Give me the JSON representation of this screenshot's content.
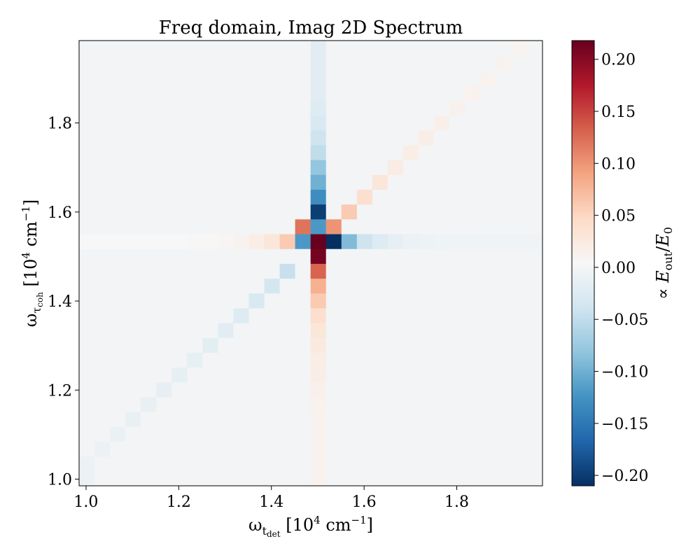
{
  "chart_data": {
    "type": "heatmap",
    "title": "Freq domain, Imag 2D Spectrum",
    "xlabel": "ω_t_det [10^4 cm^−1]",
    "ylabel": "ω_τ_coh [10^4 cm^−1]",
    "colorbar_label": "∝ E_out/E_0",
    "colormap": "RdBu_r",
    "xlim": [
      0.985,
      1.985
    ],
    "ylim": [
      0.985,
      1.985
    ],
    "clim": [
      -0.21,
      0.218
    ],
    "grid_start": 0.985,
    "grid_step": 0.0333,
    "grid_count": 30,
    "x_ticks": [
      1.0,
      1.2,
      1.4,
      1.6,
      1.8
    ],
    "x_tick_labels": [
      "1.0",
      "1.2",
      "1.4",
      "1.6",
      "1.8"
    ],
    "y_ticks": [
      1.0,
      1.2,
      1.4,
      1.6,
      1.8
    ],
    "y_tick_labels": [
      "1.0",
      "1.2",
      "1.4",
      "1.6",
      "1.8"
    ],
    "colorbar_ticks": [
      0.2,
      0.15,
      0.1,
      0.05,
      0.0,
      -0.05,
      -0.1,
      -0.15,
      -0.2
    ],
    "colorbar_tick_labels": [
      "0.20",
      "0.15",
      "0.10",
      "0.05",
      "0.00",
      "−0.05",
      "−0.10",
      "−0.15",
      "−0.20"
    ],
    "background_value": -0.002,
    "nonzero_cells": [
      {
        "ix": 15,
        "iy": 18,
        "v": -0.2
      },
      {
        "ix": 16,
        "iy": 17,
        "v": 0.1
      },
      {
        "ix": 15,
        "iy": 16,
        "v": 0.22
      },
      {
        "ix": 14,
        "iy": 16,
        "v": -0.12
      },
      {
        "ix": 16,
        "iy": 16,
        "v": -0.21
      },
      {
        "ix": 15,
        "iy": 17,
        "v": -0.12
      },
      {
        "ix": 17,
        "iy": 16,
        "v": -0.09
      },
      {
        "ix": 15,
        "iy": 15,
        "v": 0.21
      },
      {
        "ix": 14,
        "iy": 17,
        "v": 0.12
      },
      {
        "ix": 15,
        "iy": 14,
        "v": 0.13
      },
      {
        "ix": 15,
        "iy": 13,
        "v": 0.08
      },
      {
        "ix": 15,
        "iy": 12,
        "v": 0.06
      },
      {
        "ix": 15,
        "iy": 11,
        "v": 0.04
      },
      {
        "ix": 15,
        "iy": 10,
        "v": 0.03
      },
      {
        "ix": 15,
        "iy": 9,
        "v": 0.025
      },
      {
        "ix": 15,
        "iy": 8,
        "v": 0.02
      },
      {
        "ix": 15,
        "iy": 7,
        "v": 0.018
      },
      {
        "ix": 15,
        "iy": 6,
        "v": 0.015
      },
      {
        "ix": 15,
        "iy": 5,
        "v": 0.013
      },
      {
        "ix": 15,
        "iy": 4,
        "v": 0.012
      },
      {
        "ix": 15,
        "iy": 3,
        "v": 0.012
      },
      {
        "ix": 15,
        "iy": 2,
        "v": 0.012
      },
      {
        "ix": 15,
        "iy": 1,
        "v": 0.012
      },
      {
        "ix": 15,
        "iy": 0,
        "v": 0.012
      },
      {
        "ix": 15,
        "iy": 19,
        "v": -0.13
      },
      {
        "ix": 15,
        "iy": 20,
        "v": -0.1
      },
      {
        "ix": 15,
        "iy": 21,
        "v": -0.08
      },
      {
        "ix": 15,
        "iy": 22,
        "v": -0.05
      },
      {
        "ix": 15,
        "iy": 23,
        "v": -0.04
      },
      {
        "ix": 15,
        "iy": 24,
        "v": -0.03
      },
      {
        "ix": 15,
        "iy": 25,
        "v": -0.025
      },
      {
        "ix": 15,
        "iy": 26,
        "v": -0.02
      },
      {
        "ix": 15,
        "iy": 27,
        "v": -0.02
      },
      {
        "ix": 15,
        "iy": 28,
        "v": -0.02
      },
      {
        "ix": 15,
        "iy": 29,
        "v": -0.02
      },
      {
        "ix": 13,
        "iy": 16,
        "v": 0.06
      },
      {
        "ix": 12,
        "iy": 16,
        "v": 0.03
      },
      {
        "ix": 11,
        "iy": 16,
        "v": 0.02
      },
      {
        "ix": 10,
        "iy": 16,
        "v": 0.012
      },
      {
        "ix": 9,
        "iy": 16,
        "v": 0.008
      },
      {
        "ix": 8,
        "iy": 16,
        "v": 0.006
      },
      {
        "ix": 7,
        "iy": 16,
        "v": 0.005
      },
      {
        "ix": 6,
        "iy": 16,
        "v": 0.004
      },
      {
        "ix": 5,
        "iy": 16,
        "v": 0.004
      },
      {
        "ix": 4,
        "iy": 16,
        "v": 0.004
      },
      {
        "ix": 3,
        "iy": 16,
        "v": 0.004
      },
      {
        "ix": 2,
        "iy": 16,
        "v": 0.004
      },
      {
        "ix": 1,
        "iy": 16,
        "v": 0.004
      },
      {
        "ix": 0,
        "iy": 16,
        "v": 0.004
      },
      {
        "ix": 18,
        "iy": 16,
        "v": -0.04
      },
      {
        "ix": 19,
        "iy": 16,
        "v": -0.025
      },
      {
        "ix": 20,
        "iy": 16,
        "v": -0.015
      },
      {
        "ix": 21,
        "iy": 16,
        "v": -0.01
      },
      {
        "ix": 22,
        "iy": 16,
        "v": -0.008
      },
      {
        "ix": 23,
        "iy": 16,
        "v": -0.006
      },
      {
        "ix": 24,
        "iy": 16,
        "v": -0.005
      },
      {
        "ix": 25,
        "iy": 16,
        "v": -0.005
      },
      {
        "ix": 26,
        "iy": 16,
        "v": -0.005
      },
      {
        "ix": 27,
        "iy": 16,
        "v": -0.005
      },
      {
        "ix": 28,
        "iy": 16,
        "v": -0.005
      },
      {
        "ix": 29,
        "iy": 16,
        "v": -0.005
      },
      {
        "ix": 17,
        "iy": 18,
        "v": 0.06
      },
      {
        "ix": 18,
        "iy": 19,
        "v": 0.04
      },
      {
        "ix": 19,
        "iy": 20,
        "v": 0.03
      },
      {
        "ix": 20,
        "iy": 21,
        "v": 0.022
      },
      {
        "ix": 21,
        "iy": 22,
        "v": 0.02
      },
      {
        "ix": 22,
        "iy": 23,
        "v": 0.018
      },
      {
        "ix": 23,
        "iy": 24,
        "v": 0.016
      },
      {
        "ix": 24,
        "iy": 25,
        "v": 0.014
      },
      {
        "ix": 25,
        "iy": 26,
        "v": 0.013
      },
      {
        "ix": 26,
        "iy": 27,
        "v": 0.012
      },
      {
        "ix": 27,
        "iy": 28,
        "v": 0.011
      },
      {
        "ix": 28,
        "iy": 29,
        "v": 0.01
      },
      {
        "ix": 13,
        "iy": 14,
        "v": -0.045
      },
      {
        "ix": 12,
        "iy": 13,
        "v": -0.035
      },
      {
        "ix": 11,
        "iy": 12,
        "v": -0.03
      },
      {
        "ix": 10,
        "iy": 11,
        "v": -0.025
      },
      {
        "ix": 9,
        "iy": 10,
        "v": -0.02
      },
      {
        "ix": 8,
        "iy": 9,
        "v": -0.018
      },
      {
        "ix": 7,
        "iy": 8,
        "v": -0.016
      },
      {
        "ix": 6,
        "iy": 7,
        "v": -0.015
      },
      {
        "ix": 5,
        "iy": 6,
        "v": -0.014
      },
      {
        "ix": 4,
        "iy": 5,
        "v": -0.013
      },
      {
        "ix": 3,
        "iy": 4,
        "v": -0.012
      },
      {
        "ix": 2,
        "iy": 3,
        "v": -0.011
      },
      {
        "ix": 1,
        "iy": 2,
        "v": -0.01
      },
      {
        "ix": 0,
        "iy": 1,
        "v": -0.01
      },
      {
        "ix": 0,
        "iy": 0,
        "v": -0.01
      }
    ]
  }
}
